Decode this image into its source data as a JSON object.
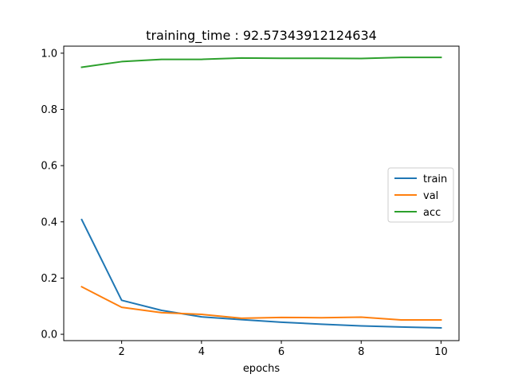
{
  "chart_data": {
    "type": "line",
    "title": "training_time : 92.57343912124634",
    "xlabel": "epochs",
    "ylabel": "",
    "xlim": [
      0.55,
      10.45
    ],
    "ylim": [
      -0.0225,
      1.025
    ],
    "xticks": [
      2,
      4,
      6,
      8,
      10
    ],
    "yticks": [
      0.0,
      0.2,
      0.4,
      0.6,
      0.8,
      1.0
    ],
    "yticklabels": [
      "0.0",
      "0.2",
      "0.4",
      "0.6",
      "0.8",
      "1.0"
    ],
    "grid": false,
    "legend_position": "center-right",
    "x": [
      1,
      2,
      3,
      4,
      5,
      6,
      7,
      8,
      9,
      10
    ],
    "series": [
      {
        "name": "train",
        "color": "#1f77b4",
        "values": [
          0.408,
          0.121,
          0.085,
          0.062,
          0.052,
          0.043,
          0.036,
          0.03,
          0.026,
          0.023
        ]
      },
      {
        "name": "val",
        "color": "#ff7f0e",
        "values": [
          0.169,
          0.096,
          0.077,
          0.071,
          0.057,
          0.06,
          0.059,
          0.061,
          0.051,
          0.051
        ]
      },
      {
        "name": "acc",
        "color": "#2ca02c",
        "values": [
          0.95,
          0.97,
          0.978,
          0.978,
          0.983,
          0.982,
          0.982,
          0.981,
          0.985,
          0.985
        ]
      }
    ]
  }
}
